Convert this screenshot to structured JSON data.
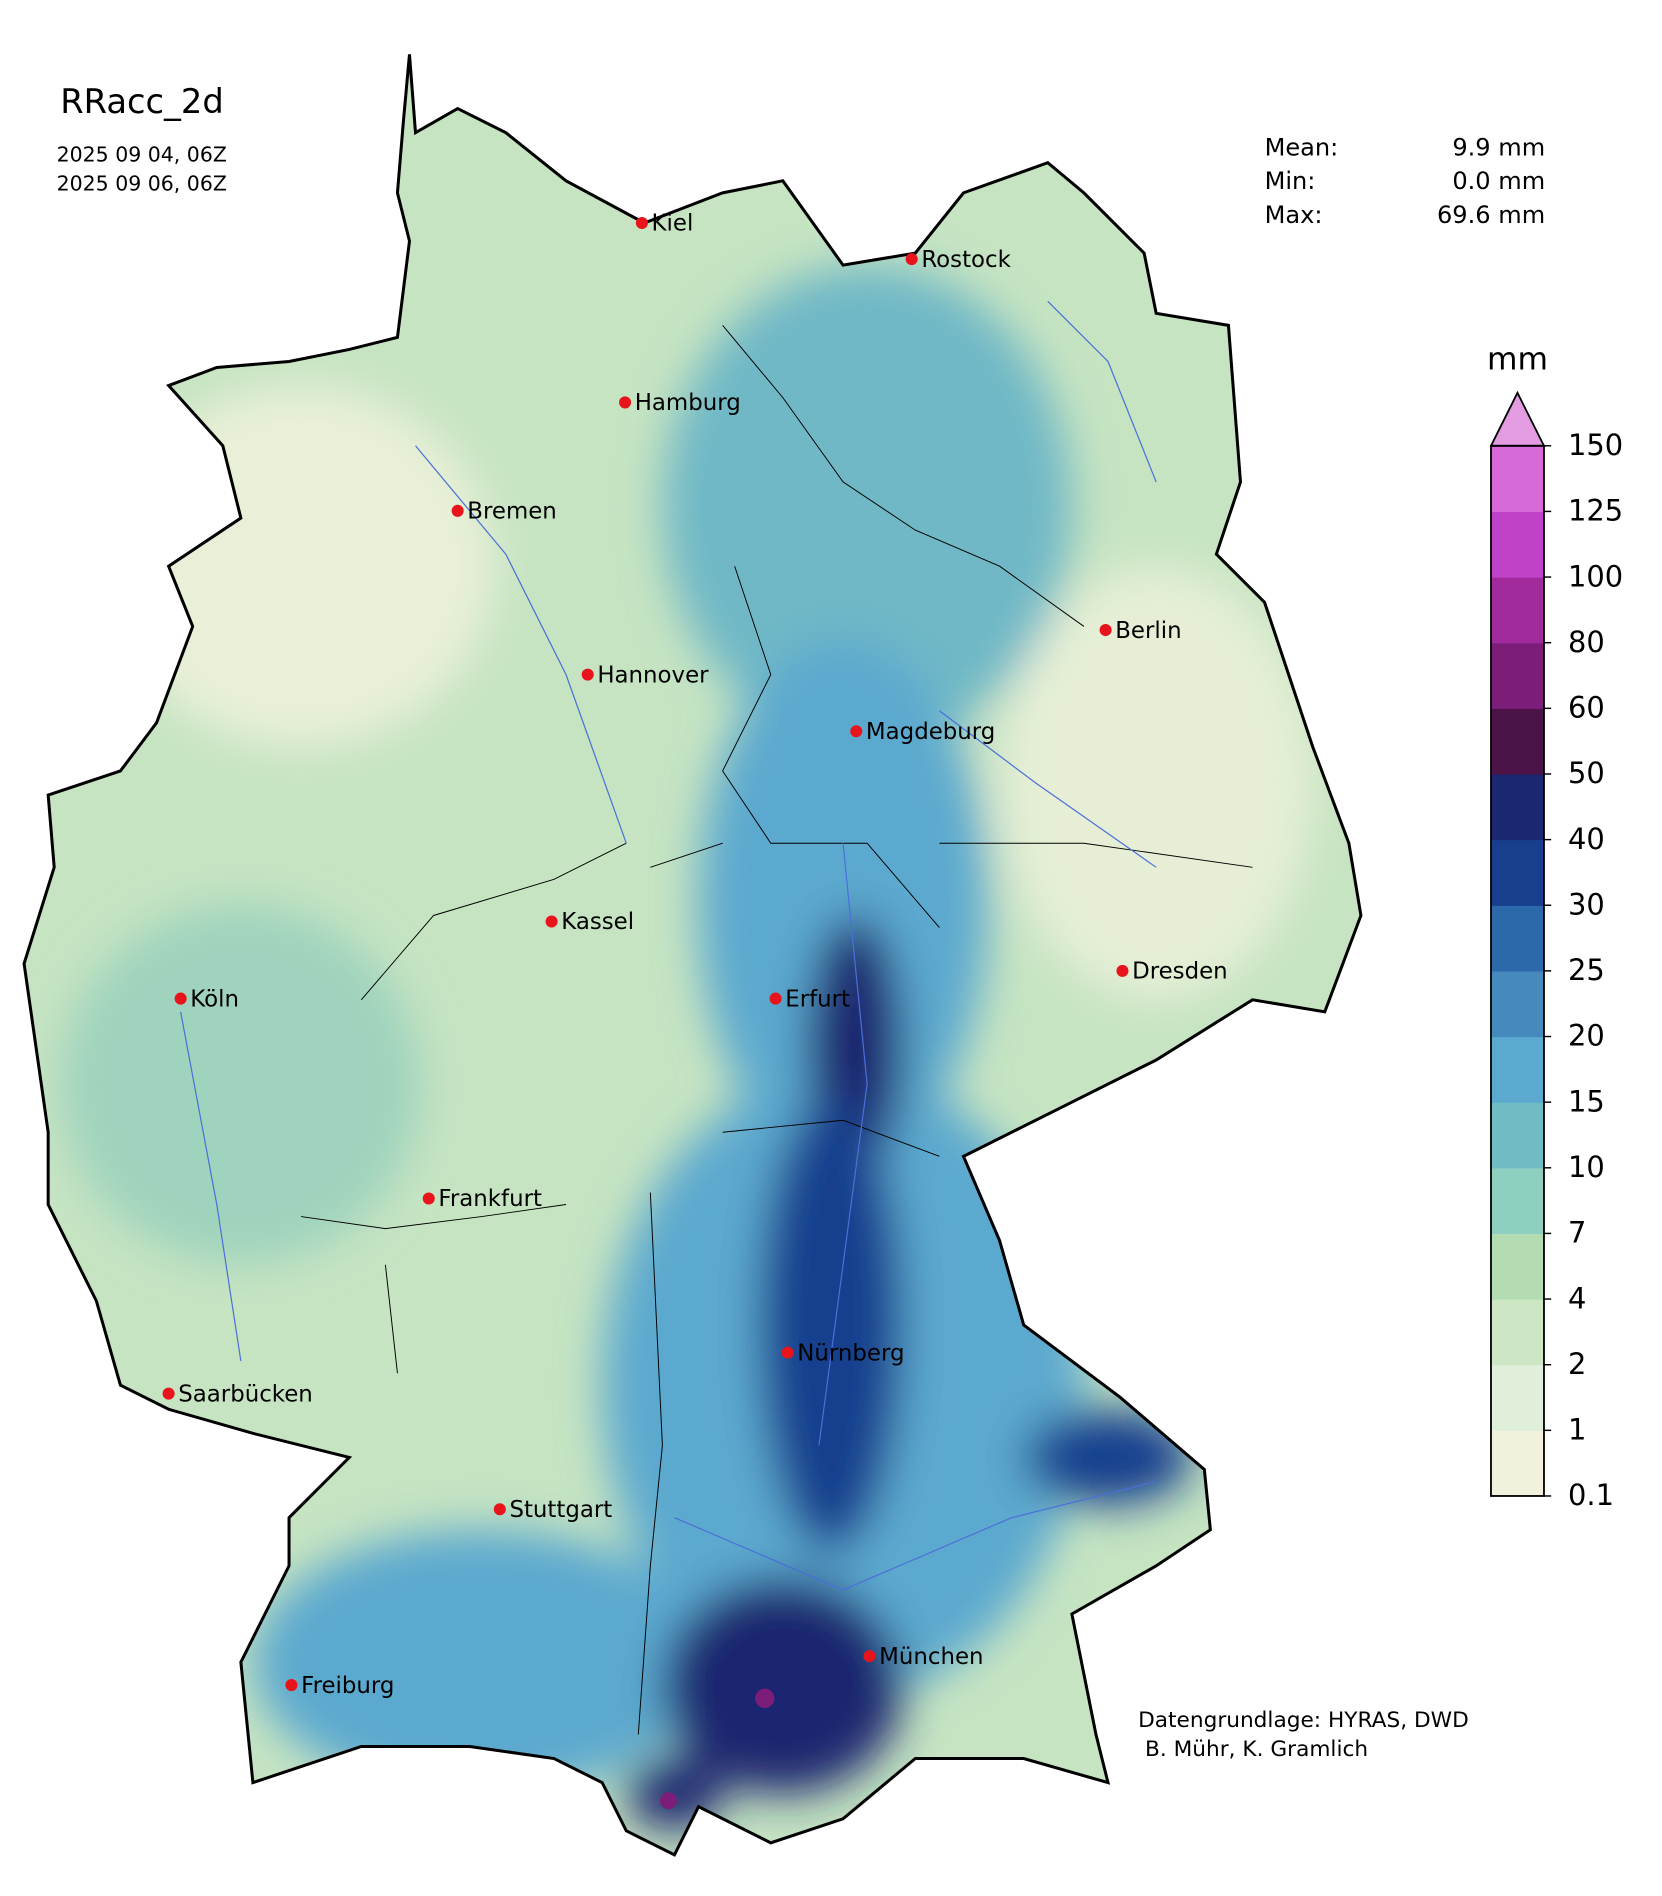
{
  "map": {
    "title": "RRacc_2d",
    "date_start": "2025 09 04, 06Z",
    "date_end": "2025 09 06, 06Z",
    "stats": [
      {
        "label": "Mean:",
        "value": "9.9 mm"
      },
      {
        "label": "Min:",
        "value": "0.0 mm"
      },
      {
        "label": "Max:",
        "value": "69.6 mm"
      }
    ],
    "cities": [
      "Kiel",
      "Rostock",
      "Hamburg",
      "Bremen",
      "Berlin",
      "Hannover",
      "Magdeburg",
      "Kassel",
      "Köln",
      "Erfurt",
      "Dresden",
      "Frankfurt",
      "Nürnberg",
      "Saarbücken",
      "Stuttgart",
      "München",
      "Freiburg"
    ],
    "colorbar": {
      "unit": "mm",
      "levels": [
        0.1,
        1,
        2,
        4,
        7,
        10,
        15,
        20,
        25,
        30,
        40,
        50,
        60,
        80,
        100,
        125,
        150
      ],
      "colors": [
        "#f1f1dc",
        "#e0efd9",
        "#cde7c5",
        "#b3dcb3",
        "#8ecfbf",
        "#70bcc4",
        "#5ba9cf",
        "#4689bd",
        "#2c69ab",
        "#183f8e",
        "#1b2770",
        "#4b1347",
        "#7b1d79",
        "#a12b9d",
        "#c042c9",
        "#d76ad8"
      ],
      "extend_color": "#e39ce1"
    },
    "credits": [
      "Datengrundlage: HYRAS, DWD",
      " B. Mühr, K. Gramlich"
    ]
  }
}
